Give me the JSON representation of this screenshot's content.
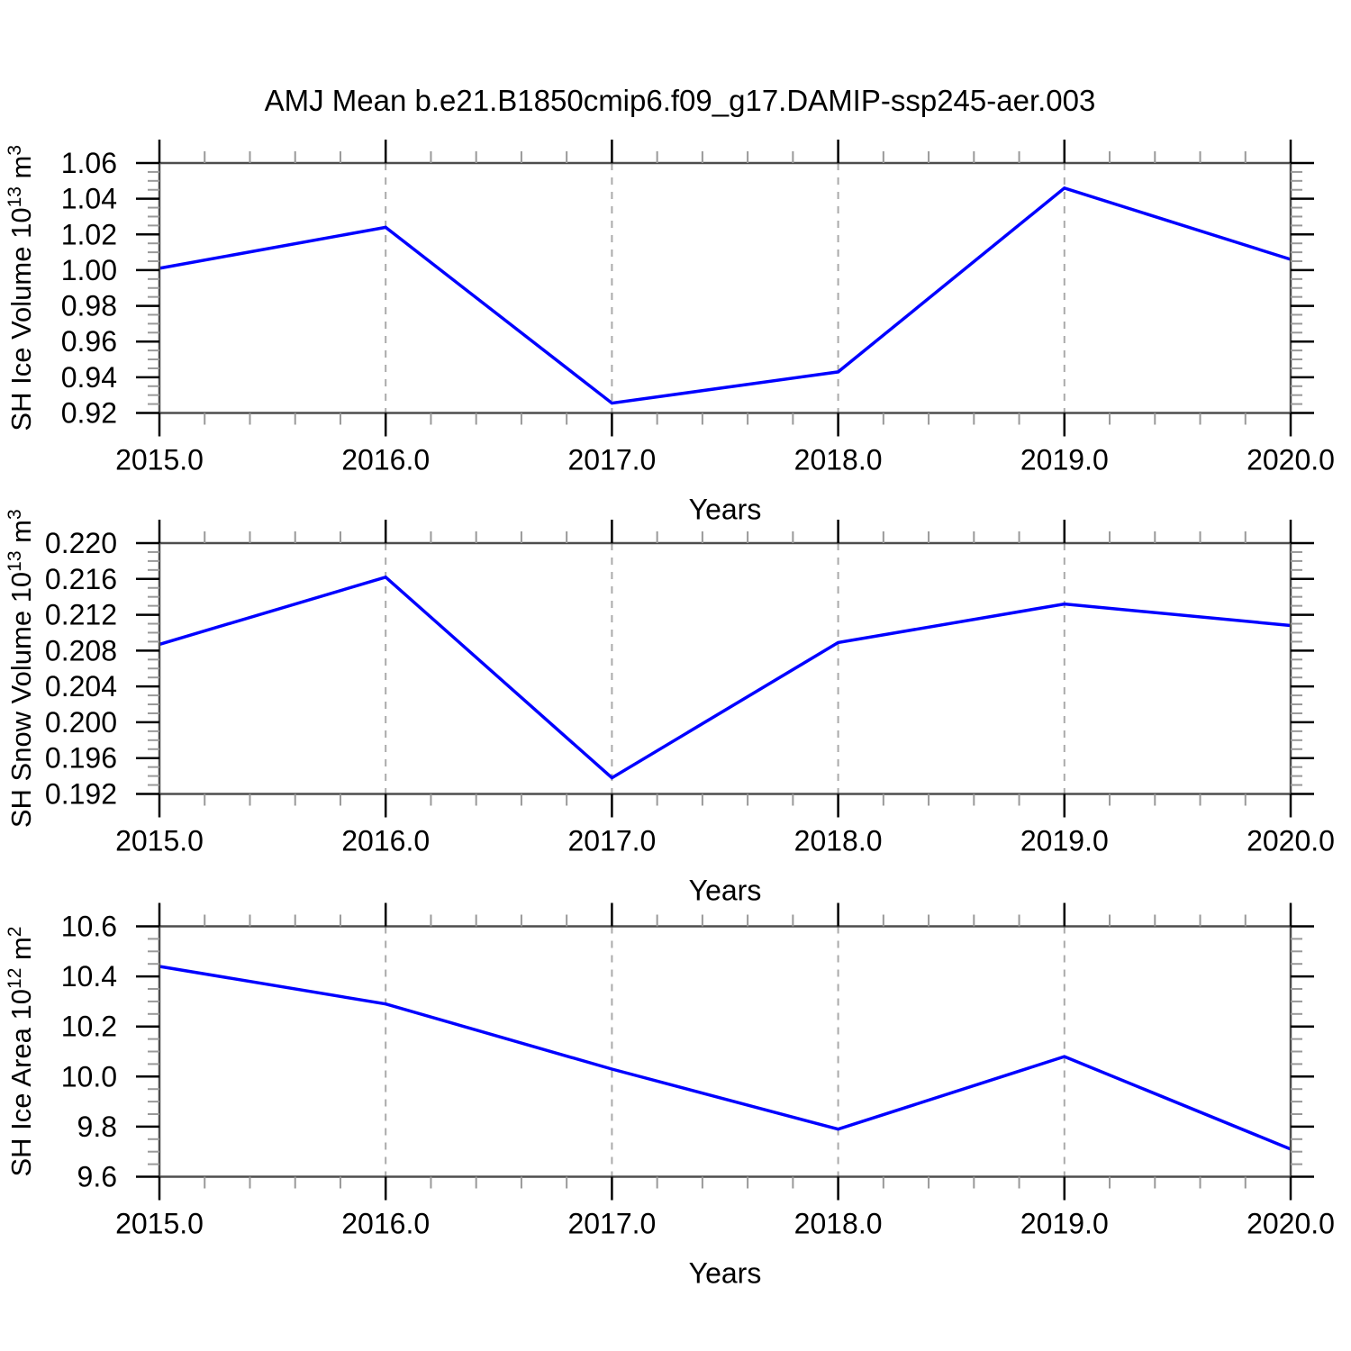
{
  "title": "AMJ Mean b.e21.B1850cmip6.f09_g17.DAMIP-ssp245-aer.003",
  "colors": {
    "line": "#0000ff",
    "frame": "#4d4d4d",
    "major_tick": "#000000",
    "minor_tick": "#999999",
    "grid": "#aaaaaa",
    "text": "#000000",
    "background": "#ffffff"
  },
  "chart_data": [
    {
      "type": "line",
      "name": "sh-ice-volume",
      "ylabel_text": "SH Ice Volume 10^13 m^3",
      "ylabel_segments": [
        {
          "text": "SH Ice Volume 10",
          "sup": false
        },
        {
          "text": "13",
          "sup": true
        },
        {
          "text": " m",
          "sup": false
        },
        {
          "text": "3",
          "sup": true
        }
      ],
      "xlabel": "Years",
      "x": [
        2015,
        2016,
        2017,
        2018,
        2019,
        2020
      ],
      "values": [
        1.001,
        1.024,
        0.9255,
        0.943,
        1.046,
        1.006
      ],
      "xlim": [
        2015,
        2020
      ],
      "ylim": [
        0.92,
        1.06
      ],
      "xminor_step": 0.2,
      "yminor_step": 0.005,
      "grid_x": [
        2016,
        2017,
        2018,
        2019
      ],
      "xticks": [
        {
          "v": 2015,
          "label": "2015.0"
        },
        {
          "v": 2016,
          "label": "2016.0"
        },
        {
          "v": 2017,
          "label": "2017.0"
        },
        {
          "v": 2018,
          "label": "2018.0"
        },
        {
          "v": 2019,
          "label": "2019.0"
        },
        {
          "v": 2020,
          "label": "2020.0"
        }
      ],
      "yticks": [
        {
          "v": 0.92,
          "label": "0.92"
        },
        {
          "v": 0.94,
          "label": "0.94"
        },
        {
          "v": 0.96,
          "label": "0.96"
        },
        {
          "v": 0.98,
          "label": "0.98"
        },
        {
          "v": 1.0,
          "label": "1.00"
        },
        {
          "v": 1.02,
          "label": "1.02"
        },
        {
          "v": 1.04,
          "label": "1.04"
        },
        {
          "v": 1.06,
          "label": "1.06"
        }
      ]
    },
    {
      "type": "line",
      "name": "sh-snow-volume",
      "ylabel_text": "SH Snow Volume 10^13 m^3",
      "ylabel_segments": [
        {
          "text": "SH Snow Volume 10",
          "sup": false
        },
        {
          "text": "13",
          "sup": true
        },
        {
          "text": " m",
          "sup": false
        },
        {
          "text": "3",
          "sup": true
        }
      ],
      "xlabel": "Years",
      "x": [
        2015,
        2016,
        2017,
        2018,
        2019,
        2020
      ],
      "values": [
        0.2087,
        0.2162,
        0.1938,
        0.2089,
        0.2132,
        0.2108
      ],
      "xlim": [
        2015,
        2020
      ],
      "ylim": [
        0.192,
        0.22
      ],
      "xminor_step": 0.2,
      "yminor_step": 0.001,
      "grid_x": [
        2016,
        2017,
        2018,
        2019
      ],
      "xticks": [
        {
          "v": 2015,
          "label": "2015.0"
        },
        {
          "v": 2016,
          "label": "2016.0"
        },
        {
          "v": 2017,
          "label": "2017.0"
        },
        {
          "v": 2018,
          "label": "2018.0"
        },
        {
          "v": 2019,
          "label": "2019.0"
        },
        {
          "v": 2020,
          "label": "2020.0"
        }
      ],
      "yticks": [
        {
          "v": 0.192,
          "label": "0.192"
        },
        {
          "v": 0.196,
          "label": "0.196"
        },
        {
          "v": 0.2,
          "label": "0.200"
        },
        {
          "v": 0.204,
          "label": "0.204"
        },
        {
          "v": 0.208,
          "label": "0.208"
        },
        {
          "v": 0.212,
          "label": "0.212"
        },
        {
          "v": 0.216,
          "label": "0.216"
        },
        {
          "v": 0.22,
          "label": "0.220"
        }
      ]
    },
    {
      "type": "line",
      "name": "sh-ice-area",
      "ylabel_text": "SH Ice Area 10^12 m^2",
      "ylabel_segments": [
        {
          "text": "SH Ice Area 10",
          "sup": false
        },
        {
          "text": "12",
          "sup": true
        },
        {
          "text": " m",
          "sup": false
        },
        {
          "text": "2",
          "sup": true
        }
      ],
      "xlabel": "Years",
      "x": [
        2015,
        2016,
        2017,
        2018,
        2019,
        2020
      ],
      "values": [
        10.44,
        10.29,
        10.03,
        9.79,
        10.08,
        9.71
      ],
      "xlim": [
        2015,
        2020
      ],
      "ylim": [
        9.6,
        10.6
      ],
      "xminor_step": 0.2,
      "yminor_step": 0.05,
      "grid_x": [
        2016,
        2017,
        2018,
        2019
      ],
      "xticks": [
        {
          "v": 2015,
          "label": "2015.0"
        },
        {
          "v": 2016,
          "label": "2016.0"
        },
        {
          "v": 2017,
          "label": "2017.0"
        },
        {
          "v": 2018,
          "label": "2018.0"
        },
        {
          "v": 2019,
          "label": "2019.0"
        },
        {
          "v": 2020,
          "label": "2020.0"
        }
      ],
      "yticks": [
        {
          "v": 9.6,
          "label": "9.6"
        },
        {
          "v": 9.8,
          "label": "9.8"
        },
        {
          "v": 10.0,
          "label": "10.0"
        },
        {
          "v": 10.2,
          "label": "10.2"
        },
        {
          "v": 10.4,
          "label": "10.4"
        },
        {
          "v": 10.6,
          "label": "10.6"
        }
      ]
    }
  ]
}
